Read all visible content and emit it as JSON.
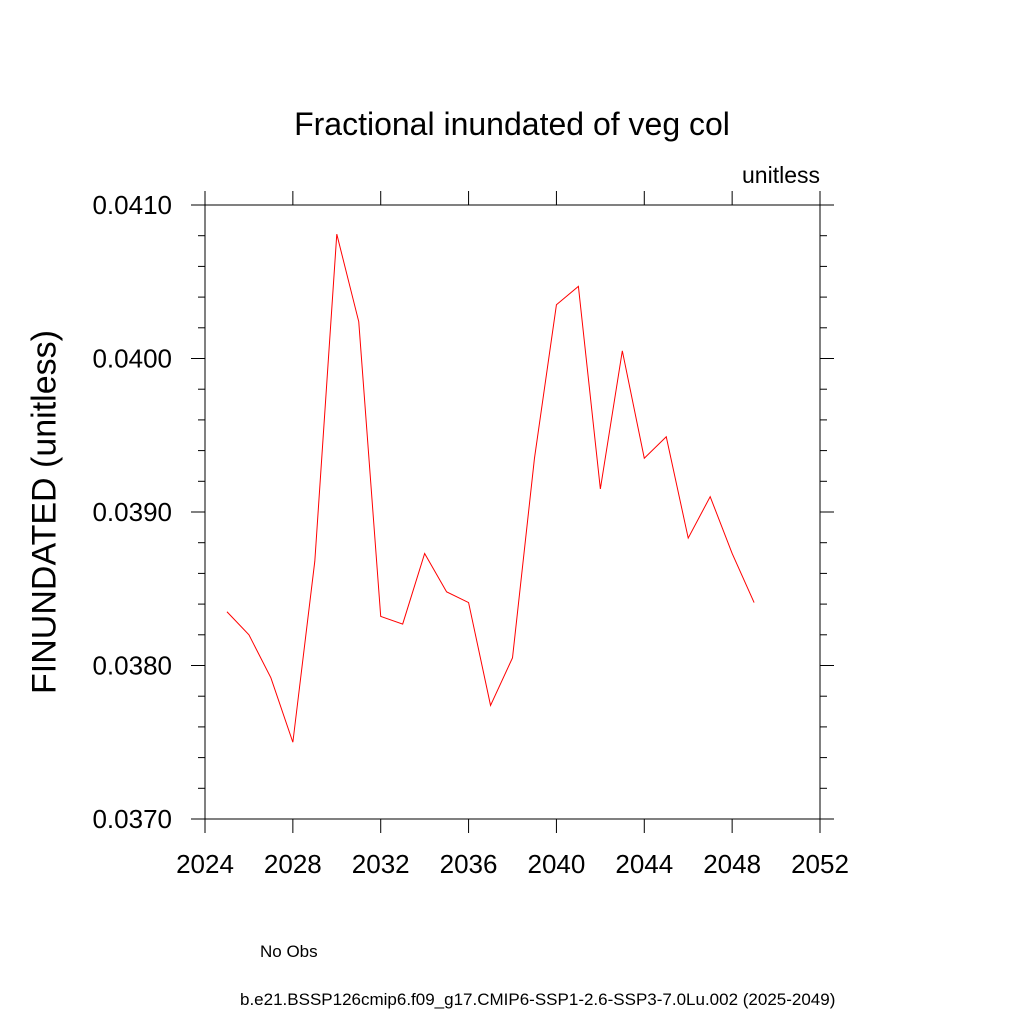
{
  "chart_data": {
    "type": "line",
    "title": "Fractional inundated of veg col",
    "units_label": "unitless",
    "xlabel": "",
    "ylabel": "FINUNDATED  (unitless)",
    "xlim": [
      2024,
      2052
    ],
    "ylim": [
      0.037,
      0.041
    ],
    "xticks": [
      "2024",
      "2028",
      "2032",
      "2036",
      "2040",
      "2044",
      "2048",
      "2052"
    ],
    "yticks": [
      "0.0370",
      "0.0380",
      "0.0390",
      "0.0400",
      "0.0410"
    ],
    "series": [
      {
        "name": "b.e21.BSSP126cmip6.f09_g17.CMIP6-SSP1-2.6-SSP3-7.0Lu.002 (2025-2049)",
        "color": "#ff0000",
        "style": "solid",
        "x": [
          2025,
          2026,
          2027,
          2028,
          2029,
          2030,
          2031,
          2032,
          2033,
          2034,
          2035,
          2036,
          2037,
          2038,
          2039,
          2040,
          2041,
          2042,
          2043,
          2044,
          2045,
          2046,
          2047,
          2048,
          2049
        ],
        "y": [
          0.03835,
          0.0382,
          0.03792,
          0.0375,
          0.03868,
          0.04081,
          0.04024,
          0.03832,
          0.03827,
          0.03873,
          0.03848,
          0.03841,
          0.03774,
          0.03805,
          0.03935,
          0.04035,
          0.04047,
          0.03915,
          0.04005,
          0.03935,
          0.03949,
          0.03883,
          0.0391,
          0.03873,
          0.03841
        ]
      },
      {
        "name": "No Obs",
        "color": "#8080c0",
        "style": "dashed",
        "x": [],
        "y": []
      }
    ],
    "grid": false,
    "legend_position": "bottom"
  }
}
